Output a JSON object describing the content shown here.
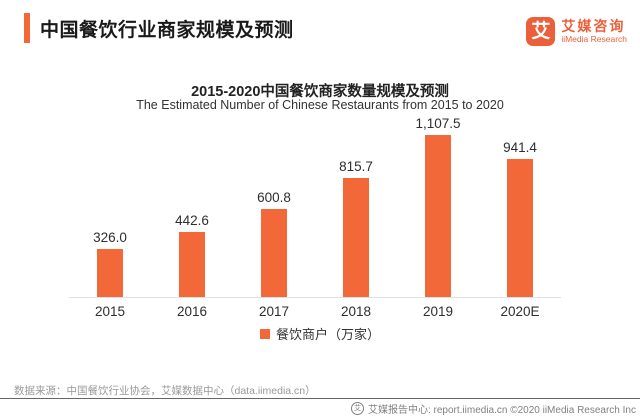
{
  "colors": {
    "accent": "#F26838",
    "logo_orange": "#EC5F3B",
    "title_text": "#1A1A1A",
    "label_text": "#2E2E2E",
    "muted_text": "#999999",
    "footer_text": "#808080",
    "footer_line": "#666666",
    "axis_line": "#E0E0E0"
  },
  "header": {
    "title": "中国餐饮行业商家规模及预测"
  },
  "logo": {
    "mark": "艾",
    "name_cn": "艾媒咨询",
    "name_en": "iiMedia Research"
  },
  "chart_data": {
    "type": "bar",
    "title": "2015-2020中国餐饮商家数量规模及预测",
    "subtitle": "The Estimated Number of Chinese Restaurants from 2015 to 2020",
    "categories": [
      "2015",
      "2016",
      "2017",
      "2018",
      "2019",
      "2020E"
    ],
    "values": [
      326.0,
      442.6,
      600.8,
      815.7,
      1107.5,
      941.4
    ],
    "value_labels": [
      "326.0",
      "442.6",
      "600.8",
      "815.7",
      "1,107.5",
      "941.4"
    ],
    "series_name": "餐饮商户（万家）",
    "legend": [
      {
        "label": "餐饮商户（万家）",
        "color": "#F26838"
      }
    ],
    "xlabel": "",
    "ylabel": "",
    "ylim": [
      0,
      1200
    ],
    "grid": false,
    "legend_position": "bottom",
    "bar_color": "#F26838"
  },
  "source_note": "数据来源：中国餐饮行业协会，艾媒数据中心（data.iimedia.cn）",
  "footer": {
    "icon": "艾",
    "text": "艾媒报告中心: report.iimedia.cn ©2020 iiMedia Research Inc"
  }
}
